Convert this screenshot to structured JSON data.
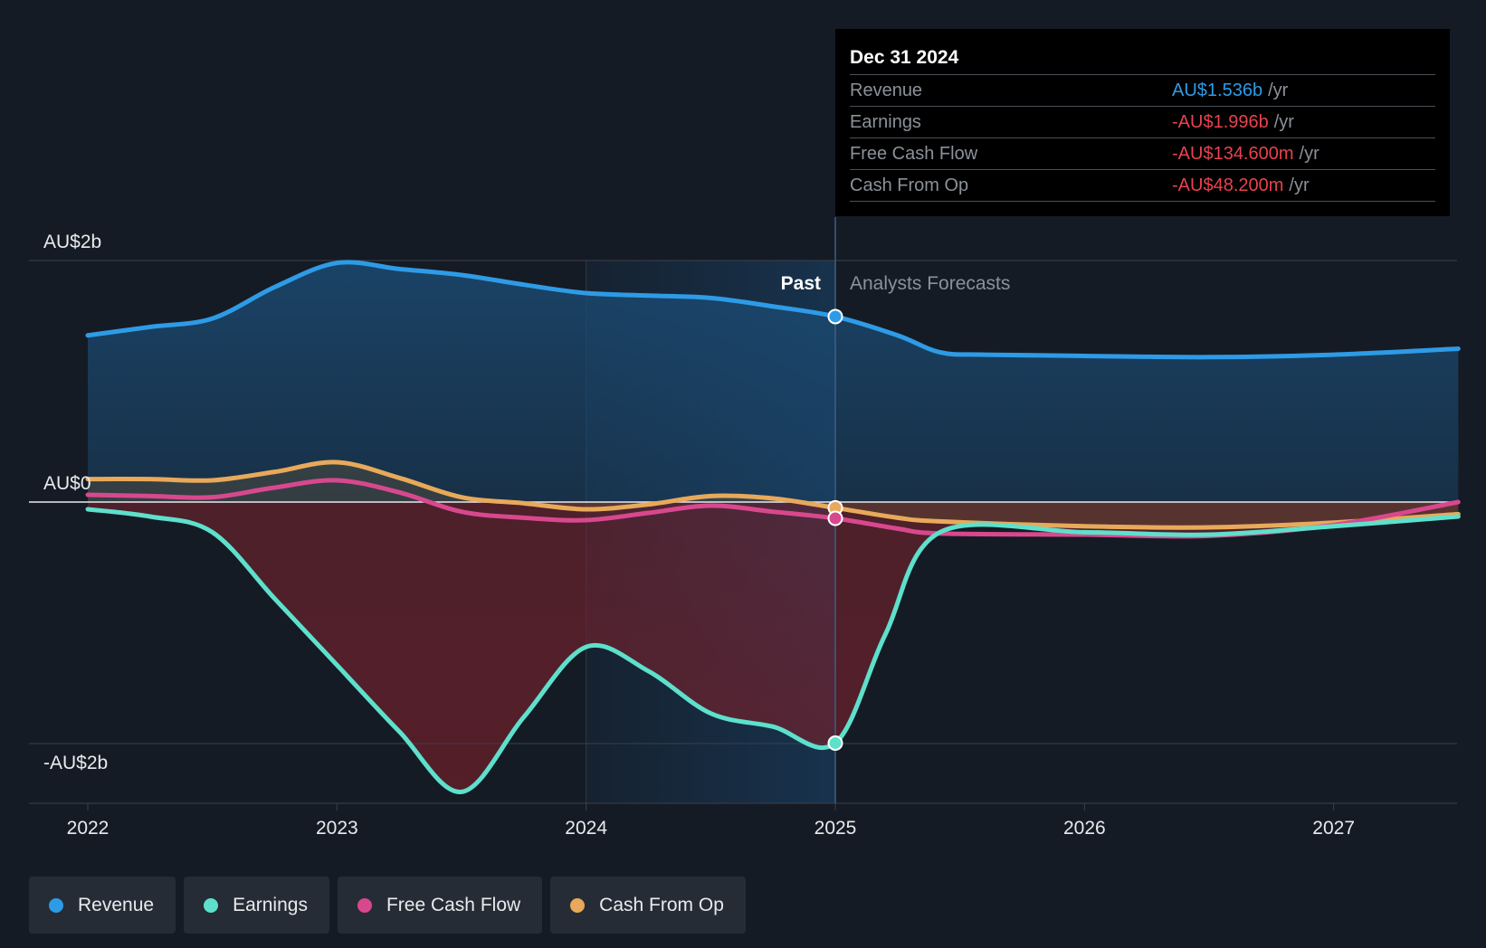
{
  "tooltip": {
    "date": "Dec 31 2024",
    "rows": [
      {
        "label": "Revenue",
        "value": "AU$1.536b",
        "unit": "/yr",
        "color": "#2e9be6"
      },
      {
        "label": "Earnings",
        "value": "-AU$1.996b",
        "unit": "/yr",
        "color": "#e8424d"
      },
      {
        "label": "Free Cash Flow",
        "value": "-AU$134.600m",
        "unit": "/yr",
        "color": "#e8424d"
      },
      {
        "label": "Cash From Op",
        "value": "-AU$48.200m",
        "unit": "/yr",
        "color": "#e8424d"
      }
    ]
  },
  "legend": [
    {
      "name": "Revenue",
      "color": "#2e9be6"
    },
    {
      "name": "Earnings",
      "color": "#5de0cc"
    },
    {
      "name": "Free Cash Flow",
      "color": "#d8488e"
    },
    {
      "name": "Cash From Op",
      "color": "#e8a95a"
    }
  ],
  "chart_data": {
    "type": "line",
    "y_labels": [
      "AU$2b",
      "AU$0",
      "-AU$2b"
    ],
    "ylim": [
      -2.5,
      2.0
    ],
    "xlim": [
      2021.75,
      2027.5
    ],
    "x_ticks": [
      2022,
      2023,
      2024,
      2025,
      2026,
      2027
    ],
    "x_tick_labels": [
      "2022",
      "2023",
      "2024",
      "2025",
      "2026",
      "2027"
    ],
    "past_label": "Past",
    "forecast_label": "Analysts Forecasts",
    "divider_x": 2025,
    "highlight_start": 2024,
    "legend_position": "bottom",
    "series": [
      {
        "name": "Revenue",
        "color": "#2e9be6",
        "points": [
          [
            2022.0,
            1.38
          ],
          [
            2022.25,
            1.45
          ],
          [
            2022.5,
            1.52
          ],
          [
            2022.75,
            1.78
          ],
          [
            2023.0,
            1.98
          ],
          [
            2023.25,
            1.93
          ],
          [
            2023.5,
            1.88
          ],
          [
            2023.75,
            1.8
          ],
          [
            2024.0,
            1.73
          ],
          [
            2024.25,
            1.71
          ],
          [
            2024.5,
            1.69
          ],
          [
            2024.75,
            1.62
          ],
          [
            2025.0,
            1.536
          ],
          [
            2025.25,
            1.38
          ],
          [
            2025.42,
            1.24
          ],
          [
            2025.6,
            1.22
          ],
          [
            2026.0,
            1.21
          ],
          [
            2026.5,
            1.2
          ],
          [
            2027.0,
            1.22
          ],
          [
            2027.5,
            1.27
          ]
        ]
      },
      {
        "name": "Cash From Op",
        "color": "#e8a95a",
        "points": [
          [
            2022.0,
            0.19
          ],
          [
            2022.25,
            0.19
          ],
          [
            2022.5,
            0.18
          ],
          [
            2022.75,
            0.25
          ],
          [
            2023.0,
            0.33
          ],
          [
            2023.25,
            0.2
          ],
          [
            2023.5,
            0.04
          ],
          [
            2023.75,
            -0.01
          ],
          [
            2024.0,
            -0.06
          ],
          [
            2024.25,
            -0.02
          ],
          [
            2024.5,
            0.05
          ],
          [
            2024.75,
            0.03
          ],
          [
            2025.0,
            -0.048
          ],
          [
            2025.25,
            -0.13
          ],
          [
            2025.42,
            -0.16
          ],
          [
            2026.0,
            -0.2
          ],
          [
            2026.5,
            -0.21
          ],
          [
            2027.0,
            -0.17
          ],
          [
            2027.5,
            -0.1
          ]
        ]
      },
      {
        "name": "Free Cash Flow",
        "color": "#d8488e",
        "points": [
          [
            2022.0,
            0.06
          ],
          [
            2022.25,
            0.05
          ],
          [
            2022.5,
            0.04
          ],
          [
            2022.75,
            0.12
          ],
          [
            2023.0,
            0.18
          ],
          [
            2023.25,
            0.08
          ],
          [
            2023.5,
            -0.08
          ],
          [
            2023.75,
            -0.13
          ],
          [
            2024.0,
            -0.15
          ],
          [
            2024.25,
            -0.09
          ],
          [
            2024.5,
            -0.03
          ],
          [
            2024.75,
            -0.08
          ],
          [
            2025.0,
            -0.1346
          ],
          [
            2025.25,
            -0.22
          ],
          [
            2025.42,
            -0.26
          ],
          [
            2026.0,
            -0.27
          ],
          [
            2026.5,
            -0.28
          ],
          [
            2027.0,
            -0.19
          ],
          [
            2027.5,
            0.0
          ]
        ]
      },
      {
        "name": "Earnings",
        "color": "#5de0cc",
        "points": [
          [
            2022.0,
            -0.06
          ],
          [
            2022.25,
            -0.12
          ],
          [
            2022.5,
            -0.25
          ],
          [
            2022.75,
            -0.8
          ],
          [
            2023.0,
            -1.35
          ],
          [
            2023.25,
            -1.9
          ],
          [
            2023.5,
            -2.4
          ],
          [
            2023.75,
            -1.78
          ],
          [
            2024.0,
            -1.2
          ],
          [
            2024.25,
            -1.4
          ],
          [
            2024.5,
            -1.75
          ],
          [
            2024.75,
            -1.86
          ],
          [
            2025.0,
            -1.996
          ],
          [
            2025.2,
            -1.1
          ],
          [
            2025.42,
            -0.25
          ],
          [
            2026.0,
            -0.25
          ],
          [
            2026.5,
            -0.27
          ],
          [
            2027.0,
            -0.2
          ],
          [
            2027.5,
            -0.12
          ]
        ]
      }
    ]
  }
}
